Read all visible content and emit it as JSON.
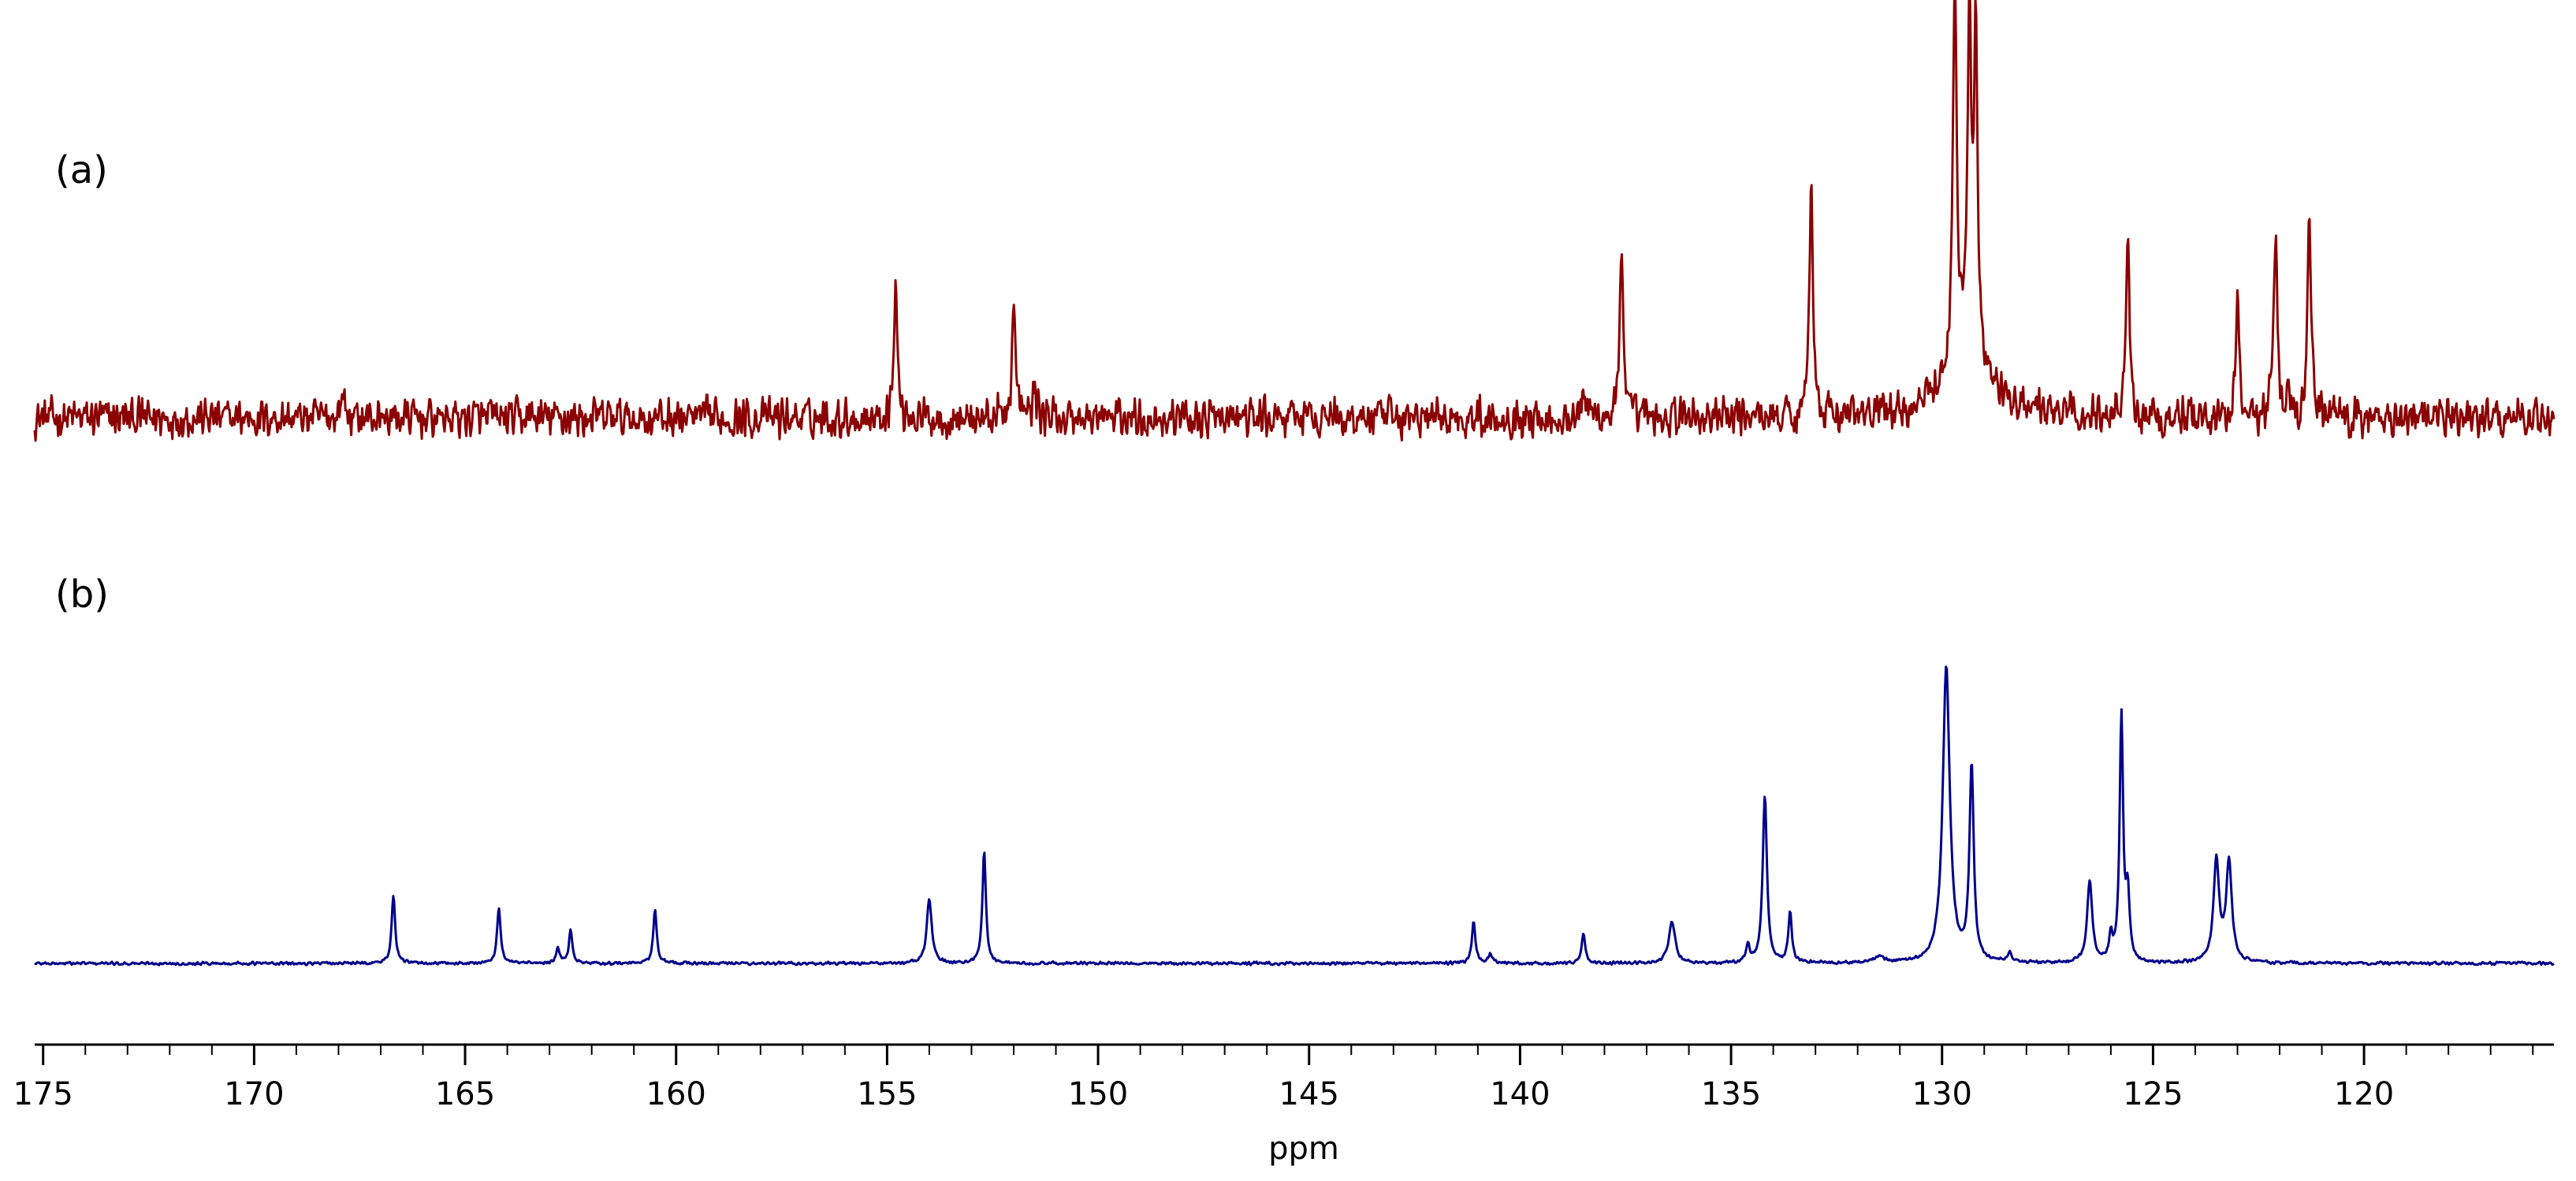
{
  "chart_data": {
    "type": "line",
    "title": "",
    "xlabel": "ppm",
    "ylabel": "",
    "xlim": [
      175.2,
      115.5
    ],
    "x_reversed": true,
    "grid": false,
    "legend": "none",
    "xticks": [
      175,
      170,
      165,
      160,
      155,
      150,
      145,
      140,
      135,
      130,
      125,
      120
    ],
    "xtick_labels": [
      "175",
      "170",
      "165",
      "160",
      "155",
      "150",
      "145",
      "140",
      "135",
      "130",
      "125",
      "120"
    ],
    "series": [
      {
        "label": "(a)",
        "color": "#8B0000",
        "noise": 0.06,
        "peaks": [
          {
            "x": 167.9,
            "h": 0.06,
            "w": 0.06
          },
          {
            "x": 154.8,
            "h": 0.33,
            "w": 0.05
          },
          {
            "x": 152.0,
            "h": 0.28,
            "w": 0.05
          },
          {
            "x": 151.5,
            "h": 0.07,
            "w": 0.06
          },
          {
            "x": 138.5,
            "h": 0.06,
            "w": 0.08
          },
          {
            "x": 137.6,
            "h": 0.4,
            "w": 0.05
          },
          {
            "x": 133.1,
            "h": 0.63,
            "w": 0.05
          },
          {
            "x": 129.7,
            "h": 1.0,
            "w": 0.05
          },
          {
            "x": 129.35,
            "h": 0.86,
            "w": 0.05
          },
          {
            "x": 129.2,
            "h": 0.8,
            "w": 0.05
          },
          {
            "x": 129.4,
            "h": 0.18,
            "w": 0.55
          },
          {
            "x": 125.6,
            "h": 0.47,
            "w": 0.05
          },
          {
            "x": 123.0,
            "h": 0.3,
            "w": 0.05
          },
          {
            "x": 122.1,
            "h": 0.48,
            "w": 0.05
          },
          {
            "x": 121.8,
            "h": 0.1,
            "w": 0.06
          },
          {
            "x": 121.3,
            "h": 0.52,
            "w": 0.05
          }
        ]
      },
      {
        "label": "(b)",
        "color": "#00008B",
        "noise": 0.006,
        "peaks": [
          {
            "x": 166.7,
            "h": 0.23,
            "w": 0.05
          },
          {
            "x": 164.2,
            "h": 0.19,
            "w": 0.05
          },
          {
            "x": 162.8,
            "h": 0.05,
            "w": 0.05
          },
          {
            "x": 162.5,
            "h": 0.11,
            "w": 0.05
          },
          {
            "x": 160.5,
            "h": 0.18,
            "w": 0.05
          },
          {
            "x": 154.0,
            "h": 0.22,
            "w": 0.07
          },
          {
            "x": 152.7,
            "h": 0.38,
            "w": 0.05
          },
          {
            "x": 141.1,
            "h": 0.14,
            "w": 0.05
          },
          {
            "x": 140.7,
            "h": 0.03,
            "w": 0.06
          },
          {
            "x": 138.5,
            "h": 0.1,
            "w": 0.05
          },
          {
            "x": 136.4,
            "h": 0.14,
            "w": 0.09
          },
          {
            "x": 134.6,
            "h": 0.06,
            "w": 0.05
          },
          {
            "x": 134.2,
            "h": 0.57,
            "w": 0.06
          },
          {
            "x": 133.6,
            "h": 0.17,
            "w": 0.05
          },
          {
            "x": 131.5,
            "h": 0.02,
            "w": 0.15
          },
          {
            "x": 129.9,
            "h": 1.0,
            "w": 0.1
          },
          {
            "x": 129.3,
            "h": 0.66,
            "w": 0.06
          },
          {
            "x": 128.4,
            "h": 0.03,
            "w": 0.06
          },
          {
            "x": 126.5,
            "h": 0.28,
            "w": 0.07
          },
          {
            "x": 126.0,
            "h": 0.08,
            "w": 0.05
          },
          {
            "x": 125.75,
            "h": 0.83,
            "w": 0.05
          },
          {
            "x": 125.6,
            "h": 0.22,
            "w": 0.05
          },
          {
            "x": 123.5,
            "h": 0.34,
            "w": 0.08
          },
          {
            "x": 123.2,
            "h": 0.34,
            "w": 0.08
          }
        ]
      }
    ]
  }
}
